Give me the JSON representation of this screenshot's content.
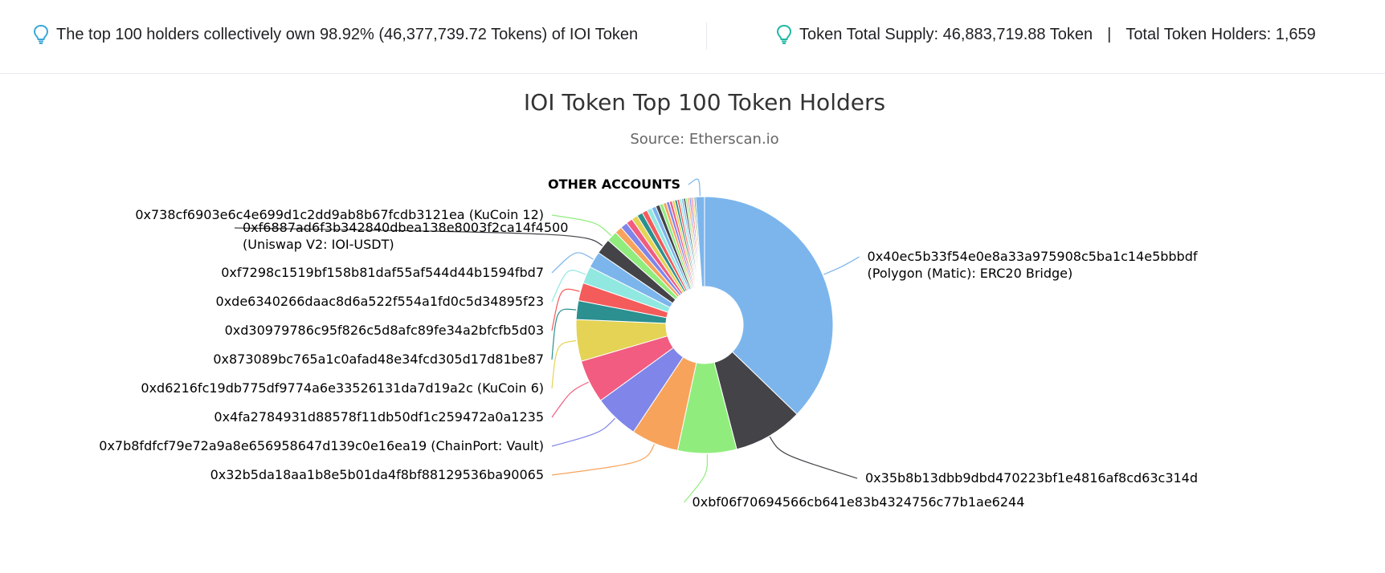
{
  "info": {
    "top_holders_text": "The top 100 holders collectively own 98.92% (46,377,739.72 Tokens) of IOI Token",
    "total_supply_text": "Token Total Supply: 46,883,719.88 Token",
    "separator": "|",
    "total_holders_text": "Total Token Holders: 1,659",
    "bulb_color": "#3ea8d8",
    "bulb_color_right": "#21b8a6"
  },
  "chart_data": {
    "type": "pie",
    "title": "IOI Token Top 100 Token Holders",
    "subtitle": "Source: Etherscan.io",
    "inner_radius_ratio": 0.3,
    "slices": [
      {
        "label": "0x40ec5b33f54e0e8a33a975908c5ba1c14e5bbbdf",
        "label2": "(Polygon (Matic): ERC20 Bridge)",
        "value": 36.2,
        "color": "#7cb5ec"
      },
      {
        "label": "0x35b8b13dbb9dbd470223bf1e4816af8cd63c314d",
        "value": 8.5,
        "color": "#434348"
      },
      {
        "label": "0xbf06f70694566cb641e83b4324756c77b1ae6244",
        "value": 7.2,
        "color": "#90ed7d"
      },
      {
        "label": "0x32b5da18aa1b8e5b01da4f8bf88129536ba90065",
        "value": 5.8,
        "color": "#f7a35c"
      },
      {
        "label": "0x7b8fdfcf79e72a9a8e656958647d139c0e16ea19 (ChainPort: Vault)",
        "value": 5.5,
        "color": "#8085e9"
      },
      {
        "label": "0x4fa2784931d88578f11db50df1c259472a0a1235",
        "value": 5.3,
        "color": "#f15c80"
      },
      {
        "label": "0xd6216fc19db775df9774a6e33526131da7d19a2c (KuCoin 6)",
        "value": 5.1,
        "color": "#e4d354"
      },
      {
        "label": "0x873089bc765a1c0afad48e34fcd305d17d81be87",
        "value": 2.3,
        "color": "#2b908f"
      },
      {
        "label": "0xd30979786c95f826c5d8afc89fe34a2bfcfb5d03",
        "value": 2.2,
        "color": "#f45b5b"
      },
      {
        "label": "0xde6340266daac8d6a522f554a1fd0c5d34895f23",
        "value": 2.1,
        "color": "#91e8e1"
      },
      {
        "label": "0xf7298c1519bf158b81daf55af544d44b1594fbd7",
        "value": 2.0,
        "color": "#7cb5ec"
      },
      {
        "label": "0xf6887ad6f3b342840dbea138e8003f2ca14f4500",
        "label2": "(Uniswap V2: IOI-USDT)",
        "value": 1.9,
        "color": "#434348"
      },
      {
        "label": "0x738cf6903e6c4e699d1c2dd9ab8b67fcdb3121ea (KuCoin 12)",
        "value": 1.3,
        "color": "#90ed7d"
      },
      {
        "value": 0.9,
        "color": "#f7a35c"
      },
      {
        "value": 0.85,
        "color": "#8085e9"
      },
      {
        "value": 0.8,
        "color": "#f15c80"
      },
      {
        "value": 0.75,
        "color": "#e4d354"
      },
      {
        "value": 0.7,
        "color": "#2b908f"
      },
      {
        "value": 0.65,
        "color": "#f45b5b"
      },
      {
        "value": 0.6,
        "color": "#91e8e1"
      },
      {
        "value": 0.55,
        "color": "#7cb5ec"
      },
      {
        "value": 0.5,
        "color": "#434348"
      },
      {
        "value": 0.45,
        "color": "#90ed7d"
      },
      {
        "value": 0.4,
        "color": "#f7a35c"
      },
      {
        "value": 0.38,
        "color": "#8085e9"
      },
      {
        "value": 0.35,
        "color": "#f15c80"
      },
      {
        "value": 0.32,
        "color": "#e4d354"
      },
      {
        "value": 0.3,
        "color": "#2b908f"
      },
      {
        "value": 0.28,
        "color": "#f45b5b"
      },
      {
        "value": 0.26,
        "color": "#91e8e1"
      },
      {
        "value": 0.25,
        "color": "#7cb5ec"
      },
      {
        "value": 0.24,
        "color": "#434348"
      },
      {
        "value": 0.23,
        "color": "#90ed7d"
      },
      {
        "value": 0.22,
        "color": "#f7a35c"
      },
      {
        "value": 0.21,
        "color": "#8085e9"
      },
      {
        "value": 0.2,
        "color": "#f15c80"
      },
      {
        "value": 0.19,
        "color": "#e4d354"
      },
      {
        "value": 0.18,
        "color": "#2b908f"
      },
      {
        "label": "OTHER ACCOUNTS",
        "value": 1.08,
        "color": "#7cb5ec",
        "label_bold": true
      }
    ]
  }
}
